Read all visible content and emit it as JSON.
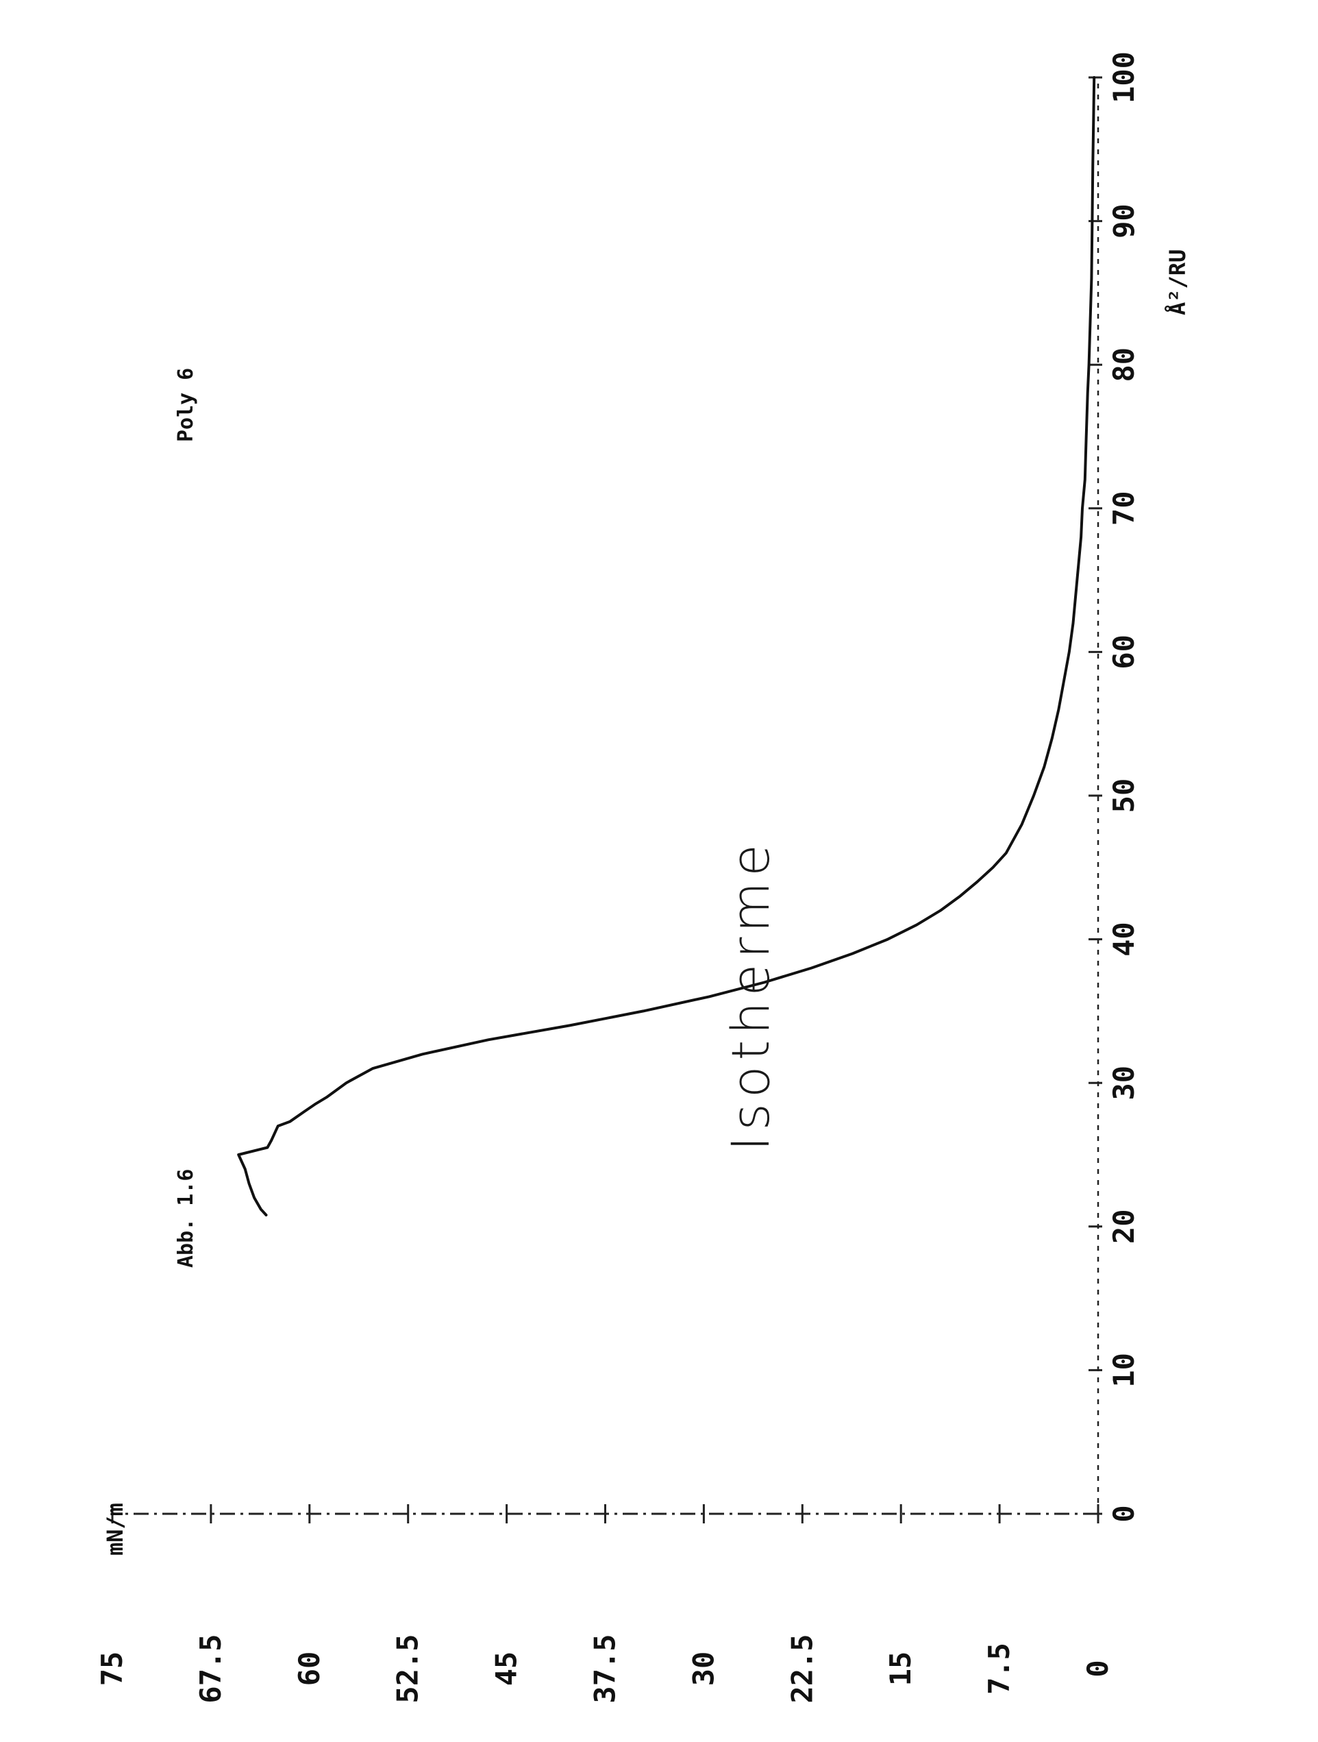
{
  "chart_data": {
    "type": "line",
    "title": "Isotherme",
    "annotations": [
      "Abb. 1.6",
      "Poly 6"
    ],
    "xlabel": "Å²/RU",
    "ylabel": "mN/m",
    "xlim": [
      0,
      100
    ],
    "ylim": [
      0,
      75
    ],
    "xticks": [
      "0",
      "10",
      "20",
      "30",
      "40",
      "50",
      "60",
      "70",
      "80",
      "90",
      "100"
    ],
    "yticks": [
      "0",
      "7.5",
      "15",
      "22.5",
      "30",
      "37.5",
      "45",
      "52.5",
      "60",
      "67.5",
      "75"
    ],
    "grid": false,
    "orientation": "rotated-90-counterclockwise",
    "series": [
      {
        "x": [
          20.8,
          21.2,
          22.0,
          23.0,
          24.0,
          25.0,
          25.5,
          26.0,
          27.0,
          27.3,
          28.0,
          28.5,
          29.0,
          30.0,
          31.0,
          32.0,
          33.0,
          34.0,
          35.0,
          36.0,
          37.0,
          38.0,
          39.0,
          40.0,
          41.0,
          42.0,
          43.0,
          44.0,
          45.0,
          46.0,
          48.0,
          50.0,
          52.0,
          54.0,
          56.0,
          58.0,
          60.0,
          62.0,
          65.0,
          68.0,
          70.0,
          72.0,
          75.0,
          78.0,
          80.0,
          83.0,
          86.0,
          90.0,
          94.0,
          97.0,
          100.0
        ],
        "y": [
          63.3,
          63.7,
          64.2,
          64.6,
          64.9,
          65.4,
          63.2,
          62.9,
          62.4,
          61.5,
          60.4,
          59.6,
          58.7,
          57.2,
          55.2,
          51.4,
          46.4,
          40.2,
          34.6,
          29.6,
          25.4,
          21.8,
          18.7,
          16.0,
          13.8,
          12.0,
          10.5,
          9.2,
          8.0,
          7.0,
          5.8,
          4.9,
          4.1,
          3.5,
          3.0,
          2.6,
          2.2,
          1.9,
          1.6,
          1.3,
          1.2,
          1.0,
          0.9,
          0.8,
          0.7,
          0.6,
          0.5,
          0.45,
          0.4,
          0.35,
          0.3
        ]
      }
    ]
  }
}
